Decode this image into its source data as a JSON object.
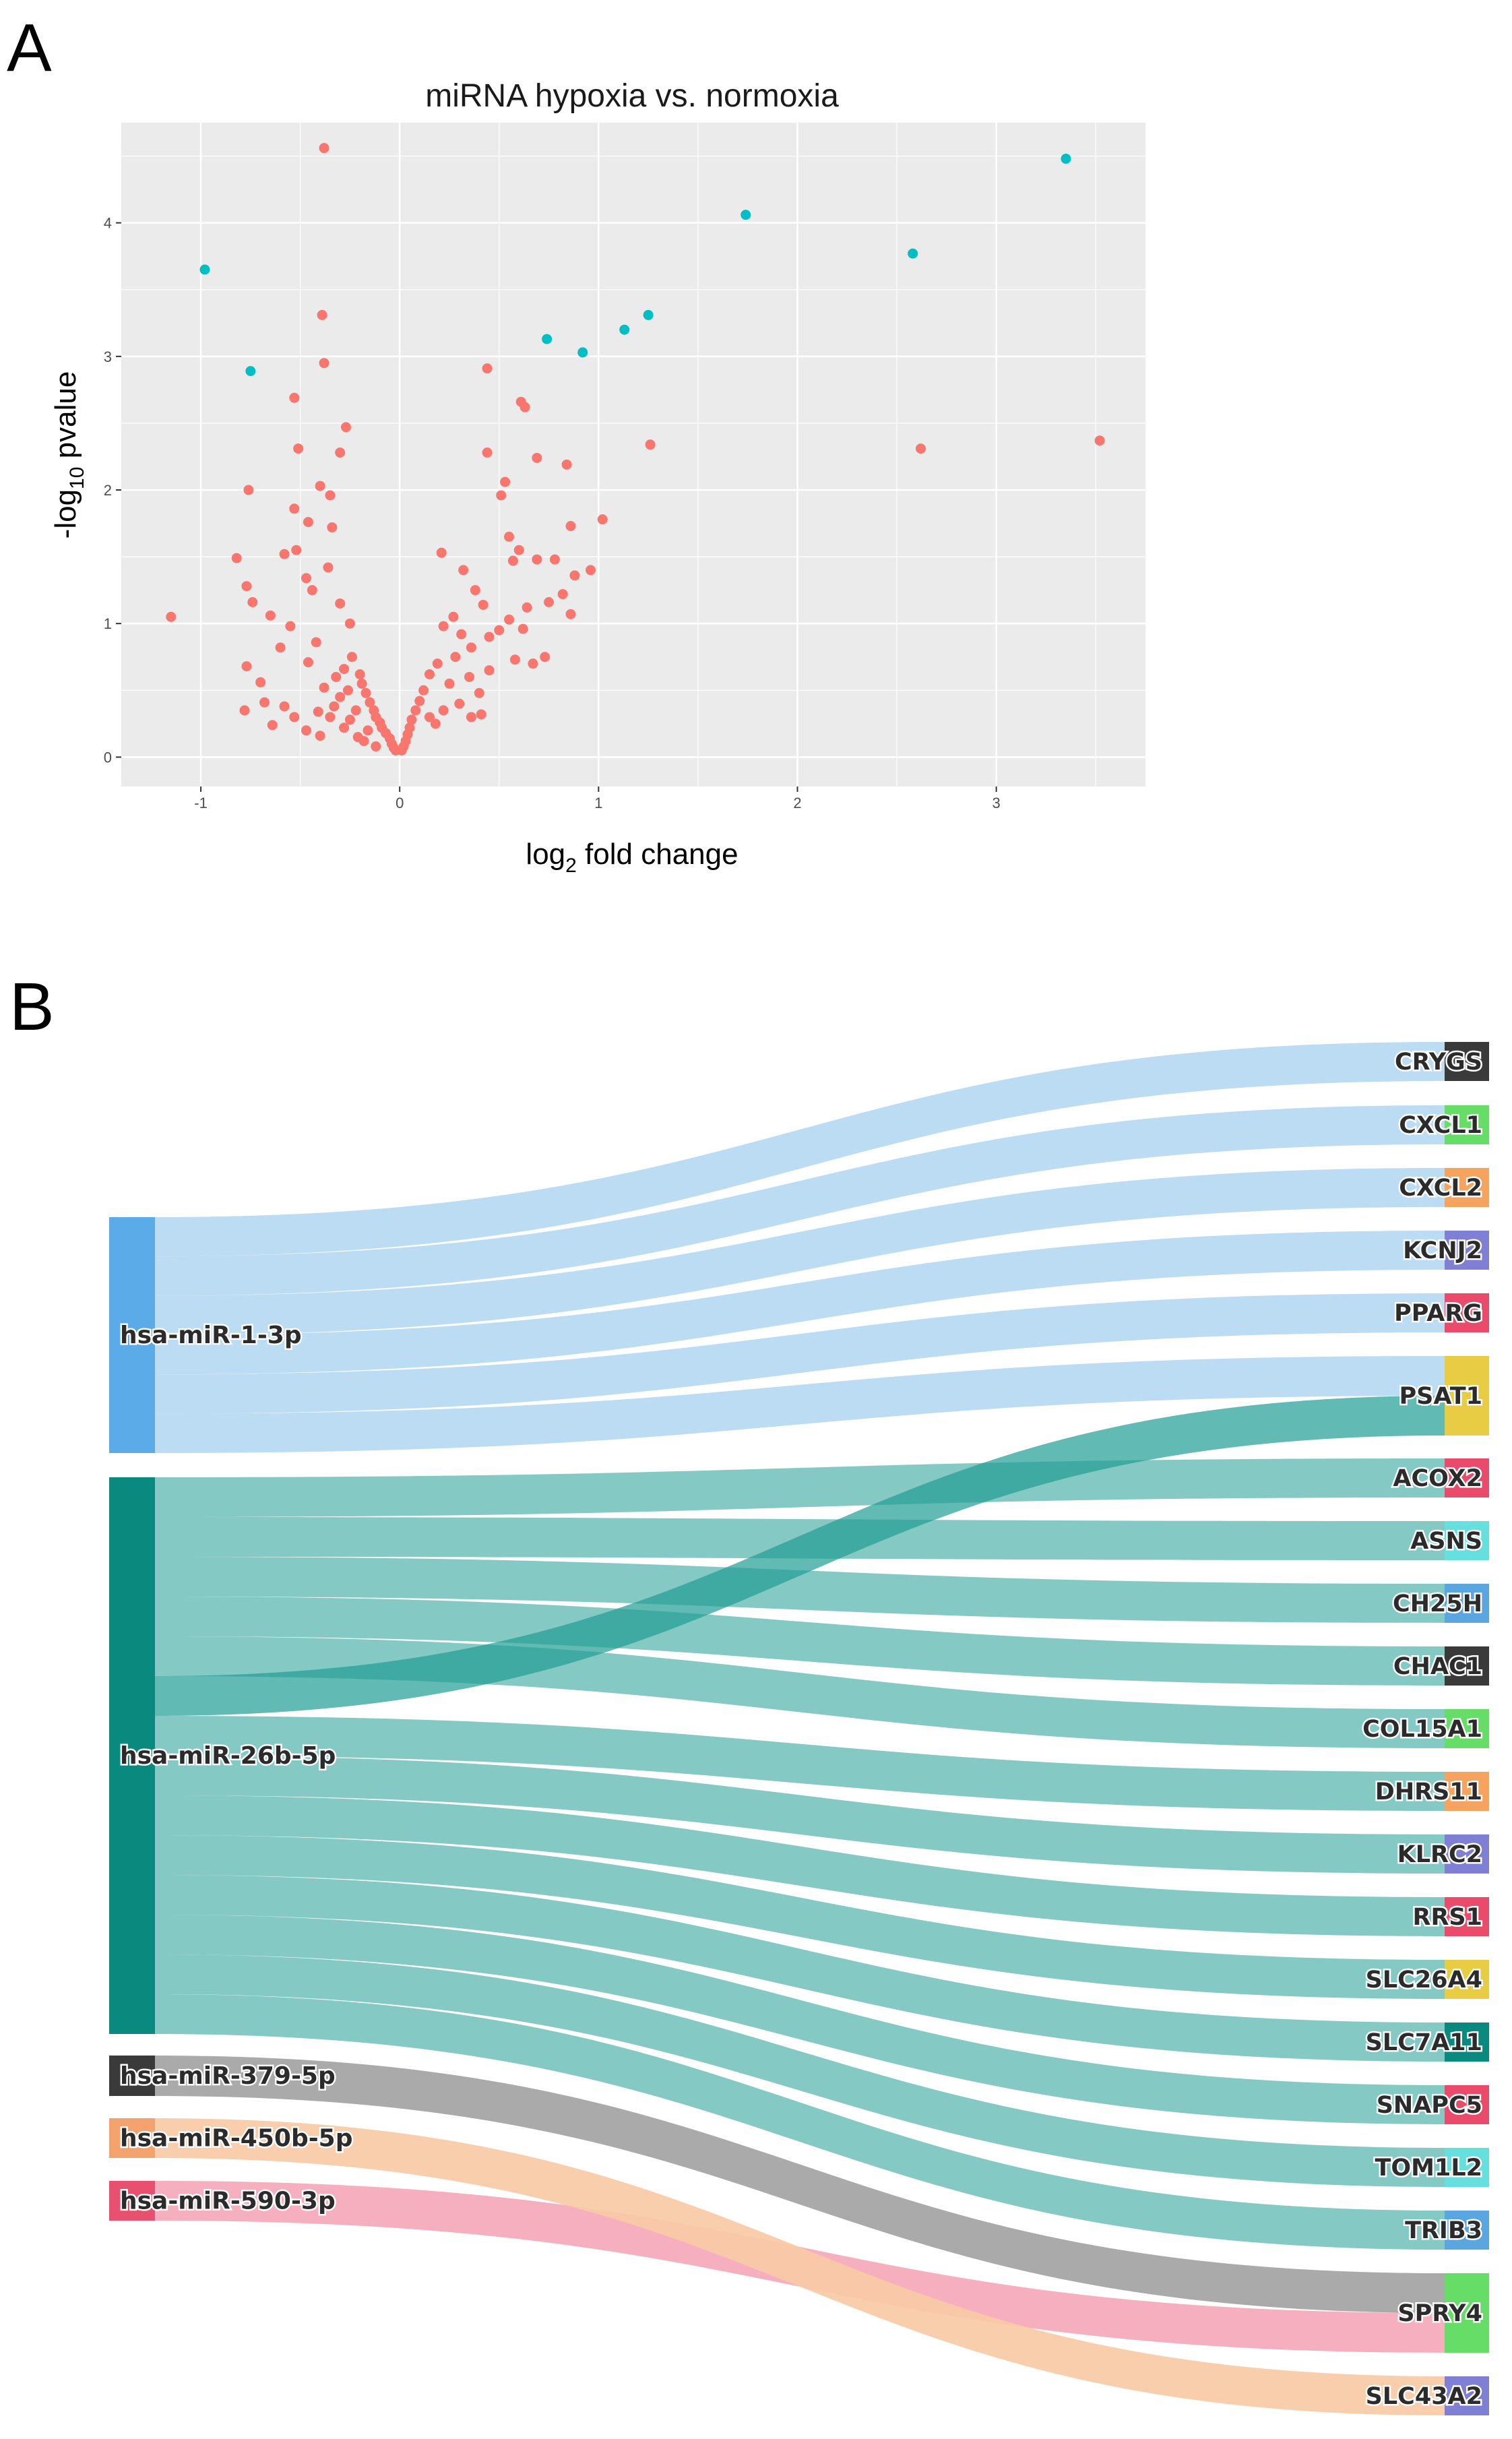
{
  "figure": {
    "panel_a_letter": "A",
    "panel_b_letter": "B"
  },
  "colors": {
    "panel_bg": "#ebebeb",
    "grid": "#ffffff",
    "not_significant": "#f8766d",
    "significant": "#00bfc4"
  },
  "chart_data": [
    {
      "type": "scatter",
      "title": "miRNA hypoxia vs. normoxia",
      "xlabel_main": "log",
      "xlabel_sub": "2",
      "xlabel_rest": " fold change",
      "ylabel_main": "-log",
      "ylabel_sub": "10",
      "ylabel_rest": " pvalue",
      "xlim": [
        -1.4,
        3.75
      ],
      "ylim": [
        -0.22,
        4.75
      ],
      "x_ticks": [
        -1,
        0,
        1,
        2,
        3
      ],
      "y_ticks": [
        0,
        1,
        2,
        3,
        4
      ],
      "x_tick_labels": [
        "-1",
        "0",
        "1",
        "2",
        "3"
      ],
      "y_tick_labels": [
        "0",
        "1",
        "2",
        "3",
        "4"
      ],
      "grid": true,
      "series": [
        {
          "name": "significant",
          "color": "#00bfc4",
          "points": [
            [
              -0.98,
              3.65
            ],
            [
              -0.75,
              2.89
            ],
            [
              0.74,
              3.13
            ],
            [
              0.92,
              3.03
            ],
            [
              1.13,
              3.2
            ],
            [
              1.25,
              3.31
            ],
            [
              1.74,
              4.06
            ],
            [
              2.58,
              3.77
            ],
            [
              3.35,
              4.48
            ]
          ]
        },
        {
          "name": "not significant",
          "color": "#f8766d",
          "points": [
            [
              -0.38,
              4.56
            ],
            [
              -0.39,
              3.31
            ],
            [
              -0.38,
              2.95
            ],
            [
              -0.53,
              2.69
            ],
            [
              -0.27,
              2.47
            ],
            [
              -0.3,
              2.28
            ],
            [
              -0.51,
              2.31
            ],
            [
              -0.76,
              2.0
            ],
            [
              -0.4,
              2.03
            ],
            [
              -0.35,
              1.96
            ],
            [
              -0.53,
              1.86
            ],
            [
              -0.46,
              1.76
            ],
            [
              -0.34,
              1.72
            ],
            [
              -1.15,
              1.05
            ],
            [
              -0.82,
              1.49
            ],
            [
              -0.77,
              1.28
            ],
            [
              -0.58,
              1.52
            ],
            [
              -0.52,
              1.55
            ],
            [
              -0.74,
              1.16
            ],
            [
              -0.65,
              1.06
            ],
            [
              -0.55,
              0.98
            ],
            [
              -0.47,
              1.34
            ],
            [
              -0.44,
              1.25
            ],
            [
              -0.36,
              1.42
            ],
            [
              -0.3,
              1.15
            ],
            [
              -0.25,
              1.0
            ],
            [
              -0.42,
              0.86
            ],
            [
              -0.6,
              0.82
            ],
            [
              -0.77,
              0.68
            ],
            [
              -0.68,
              0.41
            ],
            [
              -0.58,
              0.38
            ],
            [
              -0.53,
              0.3
            ],
            [
              -0.64,
              0.24
            ],
            [
              -0.47,
              0.2
            ],
            [
              -0.7,
              0.56
            ],
            [
              -0.78,
              0.35
            ],
            [
              -0.2,
              0.62
            ],
            [
              -0.19,
              0.55
            ],
            [
              -0.17,
              0.48
            ],
            [
              -0.15,
              0.41
            ],
            [
              -0.13,
              0.35
            ],
            [
              -0.12,
              0.3
            ],
            [
              -0.1,
              0.26
            ],
            [
              -0.09,
              0.22
            ],
            [
              -0.07,
              0.18
            ],
            [
              -0.05,
              0.14
            ],
            [
              -0.04,
              0.1
            ],
            [
              -0.03,
              0.07
            ],
            [
              -0.02,
              0.05
            ],
            [
              -0.22,
              0.35
            ],
            [
              -0.25,
              0.28
            ],
            [
              -0.28,
              0.22
            ],
            [
              -0.21,
              0.15
            ],
            [
              -0.18,
              0.12
            ],
            [
              -0.16,
              0.2
            ],
            [
              -0.12,
              0.08
            ],
            [
              -0.26,
              0.5
            ],
            [
              -0.3,
              0.45
            ],
            [
              -0.33,
              0.38
            ],
            [
              -0.35,
              0.3
            ],
            [
              -0.24,
              0.75
            ],
            [
              -0.28,
              0.66
            ],
            [
              -0.32,
              0.6
            ],
            [
              -0.38,
              0.52
            ],
            [
              -0.41,
              0.34
            ],
            [
              0.21,
              1.53
            ],
            [
              0.32,
              1.4
            ],
            [
              0.38,
              1.25
            ],
            [
              0.42,
              1.14
            ],
            [
              0.27,
              1.05
            ],
            [
              0.22,
              0.98
            ],
            [
              0.31,
              0.92
            ],
            [
              0.36,
              0.82
            ],
            [
              0.45,
              0.9
            ],
            [
              0.5,
              0.95
            ],
            [
              0.28,
              0.75
            ],
            [
              0.19,
              0.7
            ],
            [
              0.15,
              0.62
            ],
            [
              0.25,
              0.55
            ],
            [
              0.35,
              0.6
            ],
            [
              0.4,
              0.48
            ],
            [
              0.45,
              0.65
            ],
            [
              0.12,
              0.5
            ],
            [
              0.1,
              0.42
            ],
            [
              0.08,
              0.35
            ],
            [
              0.06,
              0.28
            ],
            [
              0.05,
              0.22
            ],
            [
              0.04,
              0.17
            ],
            [
              0.03,
              0.12
            ],
            [
              0.02,
              0.08
            ],
            [
              0.01,
              0.05
            ],
            [
              0.15,
              0.3
            ],
            [
              0.18,
              0.25
            ],
            [
              0.22,
              0.35
            ],
            [
              0.3,
              0.4
            ],
            [
              0.36,
              0.3
            ],
            [
              0.41,
              0.32
            ],
            [
              0.44,
              2.91
            ],
            [
              0.61,
              2.66
            ],
            [
              0.63,
              2.62
            ],
            [
              0.44,
              2.28
            ],
            [
              0.69,
              2.24
            ],
            [
              0.84,
              2.19
            ],
            [
              0.53,
              2.06
            ],
            [
              0.51,
              1.96
            ],
            [
              0.86,
              1.73
            ],
            [
              0.55,
              1.65
            ],
            [
              0.6,
              1.55
            ],
            [
              0.57,
              1.47
            ],
            [
              0.69,
              1.48
            ],
            [
              0.78,
              1.48
            ],
            [
              0.82,
              1.22
            ],
            [
              0.96,
              1.4
            ],
            [
              0.88,
              1.36
            ],
            [
              0.75,
              1.16
            ],
            [
              0.64,
              1.12
            ],
            [
              0.55,
              1.03
            ],
            [
              0.62,
              0.96
            ],
            [
              0.58,
              0.73
            ],
            [
              0.67,
              0.7
            ],
            [
              0.73,
              0.75
            ],
            [
              0.86,
              1.07
            ],
            [
              1.02,
              1.78
            ],
            [
              1.26,
              2.34
            ],
            [
              2.62,
              2.31
            ],
            [
              3.52,
              2.37
            ],
            [
              -0.46,
              0.71
            ],
            [
              -0.4,
              0.16
            ]
          ]
        }
      ]
    },
    {
      "type": "sankey",
      "sources": [
        {
          "label": "hsa-miR-1-3p",
          "color": "#5aabe8",
          "link_color": "#b5d9f2"
        },
        {
          "label": "hsa-miR-26b-5p",
          "color": "#0a8a7e",
          "link_color": "#7bc4bf"
        },
        {
          "label": "hsa-miR-379-5p",
          "color": "#3a3a3a",
          "link_color": "#a3a3a3"
        },
        {
          "label": "hsa-miR-450b-5p",
          "color": "#f5a36e",
          "link_color": "#f9caa6"
        },
        {
          "label": "hsa-miR-590-3p",
          "color": "#e8506f",
          "link_color": "#f5a8b8"
        }
      ],
      "targets": [
        {
          "label": "CRYGS",
          "color": "#3a3a3a"
        },
        {
          "label": "CXCL1",
          "color": "#66dd66"
        },
        {
          "label": "CXCL2",
          "color": "#f5a35e"
        },
        {
          "label": "KCNJ2",
          "color": "#7f7fd6"
        },
        {
          "label": "PPARG",
          "color": "#ea4b6a"
        },
        {
          "label": "PSAT1",
          "color": "#e8cc44"
        },
        {
          "label": "ACOX2",
          "color": "#ea4b6a"
        },
        {
          "label": "ASNS",
          "color": "#66e0de"
        },
        {
          "label": "CH25H",
          "color": "#5aa6e0"
        },
        {
          "label": "CHAC1",
          "color": "#3a3a3a"
        },
        {
          "label": "COL15A1",
          "color": "#66dd66"
        },
        {
          "label": "DHRS11",
          "color": "#f5a35e"
        },
        {
          "label": "KLRC2",
          "color": "#7f7fd6"
        },
        {
          "label": "RRS1",
          "color": "#ea4b6a"
        },
        {
          "label": "SLC26A4",
          "color": "#e8cc44"
        },
        {
          "label": "SLC7A11",
          "color": "#0a8a7e"
        },
        {
          "label": "SNAPC5",
          "color": "#ea4b6a"
        },
        {
          "label": "TOM1L2",
          "color": "#66e0de"
        },
        {
          "label": "TRIB3",
          "color": "#5aa6e0"
        },
        {
          "label": "SPRY4",
          "color": "#66dd66"
        },
        {
          "label": "SLC43A2",
          "color": "#7f7fd6"
        }
      ],
      "links": [
        [
          "hsa-miR-1-3p",
          "CRYGS",
          1
        ],
        [
          "hsa-miR-1-3p",
          "CXCL1",
          1
        ],
        [
          "hsa-miR-1-3p",
          "CXCL2",
          1
        ],
        [
          "hsa-miR-1-3p",
          "KCNJ2",
          1
        ],
        [
          "hsa-miR-1-3p",
          "PPARG",
          1
        ],
        [
          "hsa-miR-1-3p",
          "PSAT1",
          1
        ],
        [
          "hsa-miR-26b-5p",
          "ACOX2",
          1
        ],
        [
          "hsa-miR-26b-5p",
          "ASNS",
          1
        ],
        [
          "hsa-miR-26b-5p",
          "CH25H",
          1
        ],
        [
          "hsa-miR-26b-5p",
          "CHAC1",
          1
        ],
        [
          "hsa-miR-26b-5p",
          "COL15A1",
          1
        ],
        [
          "hsa-miR-26b-5p",
          "PSAT1",
          1
        ],
        [
          "hsa-miR-26b-5p",
          "DHRS11",
          1
        ],
        [
          "hsa-miR-26b-5p",
          "KLRC2",
          1
        ],
        [
          "hsa-miR-26b-5p",
          "RRS1",
          1
        ],
        [
          "hsa-miR-26b-5p",
          "SLC26A4",
          1
        ],
        [
          "hsa-miR-26b-5p",
          "SLC7A11",
          1
        ],
        [
          "hsa-miR-26b-5p",
          "SNAPC5",
          1
        ],
        [
          "hsa-miR-26b-5p",
          "TOM1L2",
          1
        ],
        [
          "hsa-miR-26b-5p",
          "TRIB3",
          1
        ],
        [
          "hsa-miR-379-5p",
          "SPRY4",
          1
        ],
        [
          "hsa-miR-590-3p",
          "SPRY4",
          1
        ],
        [
          "hsa-miR-450b-5p",
          "SLC43A2",
          1
        ]
      ]
    }
  ]
}
